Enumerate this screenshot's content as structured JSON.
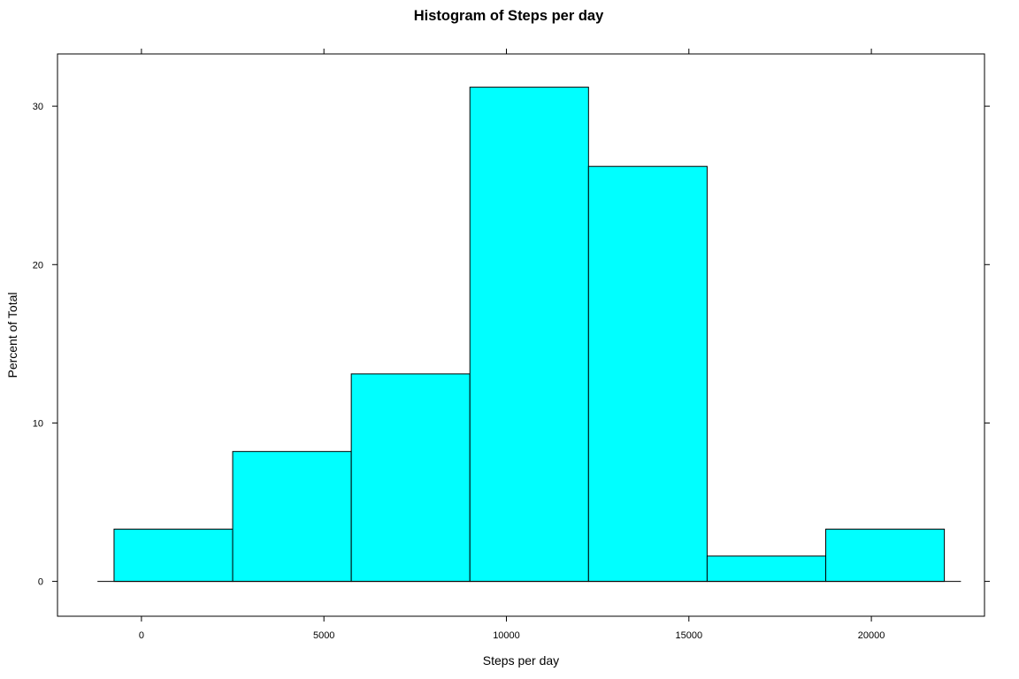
{
  "chart_data": {
    "type": "bar",
    "title": "Histogram of Steps  per day",
    "xlabel": "Steps per day",
    "ylabel": "Percent of Total",
    "xlim": [
      -2300,
      23100
    ],
    "ylim": [
      -2.2,
      33.3
    ],
    "x_ticks": [
      "0",
      "5000",
      "10000",
      "15000",
      "20000"
    ],
    "y_ticks": [
      "0",
      "10",
      "20",
      "30"
    ],
    "bins": [
      {
        "start": -750,
        "end": 2500,
        "value": 3.3
      },
      {
        "start": 2500,
        "end": 5750,
        "value": 8.2
      },
      {
        "start": 5750,
        "end": 9000,
        "value": 13.1
      },
      {
        "start": 9000,
        "end": 12250,
        "value": 31.2
      },
      {
        "start": 12250,
        "end": 15500,
        "value": 26.2
      },
      {
        "start": 15500,
        "end": 18750,
        "value": 1.6
      },
      {
        "start": 18750,
        "end": 22000,
        "value": 3.3
      }
    ],
    "bar_color": "#00FFFF",
    "bar_edge_color": "#000000",
    "grid": false,
    "legend": "none"
  }
}
